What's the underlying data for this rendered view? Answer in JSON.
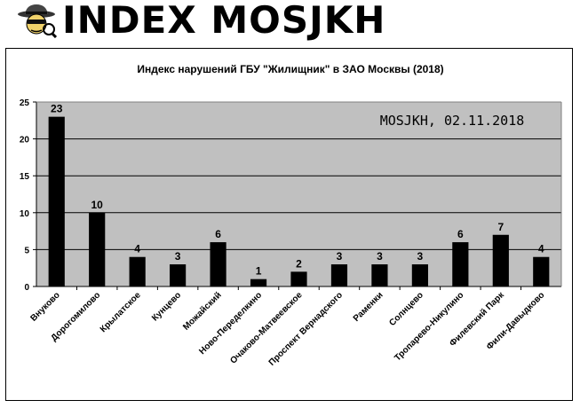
{
  "logo": {
    "text": "INDEX MOSJKH",
    "icon": "spy-detective-icon"
  },
  "chart_data": {
    "type": "bar",
    "title": "Индекс нарушений ГБУ \"Жилищник\" в ЗАО Москвы (2018)",
    "annotation": "MOSJKH, 02.11.2018",
    "xlabel": "",
    "ylabel": "",
    "ylim": [
      0,
      25
    ],
    "yticks": [
      0,
      5,
      10,
      15,
      20,
      25
    ],
    "grid": true,
    "legend": "none",
    "categories": [
      "Внуково",
      "Дорогомилово",
      "Крылатское",
      "Кунцево",
      "Можайский",
      "Ново-Переделкино",
      "Очаково-Матвеевское",
      "Проспект Вернадского",
      "Раменки",
      "Солнцево",
      "Тропарево-Никулино",
      "Филевский Парк",
      "Фили-Давыдково"
    ],
    "values": [
      23,
      10,
      4,
      3,
      6,
      1,
      2,
      3,
      3,
      3,
      6,
      7,
      4
    ],
    "colors": {
      "bar": "#000000",
      "plot_bg": "#c0c0c0",
      "grid": "#000000"
    }
  }
}
